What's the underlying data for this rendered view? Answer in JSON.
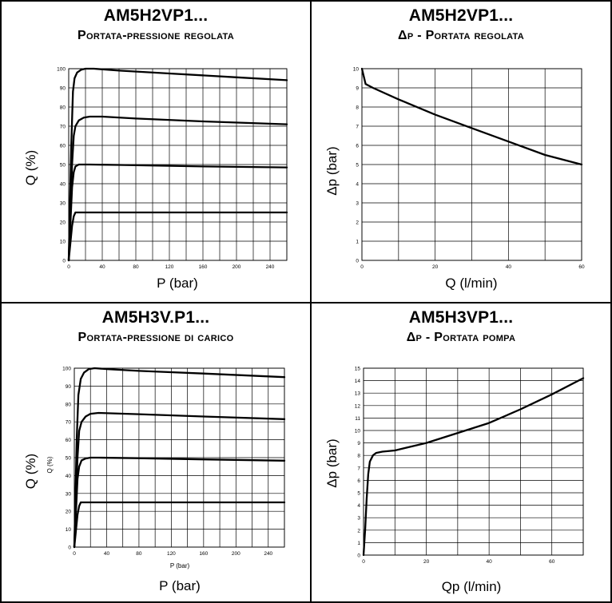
{
  "panels": [
    {
      "id": "p1",
      "title": "AM5H2VP1...",
      "subtitle": "Portata-pressione regolata",
      "chart_data": {
        "type": "line",
        "xlabel": "P (bar)",
        "ylabel": "Q (%)",
        "xlim": [
          0,
          260
        ],
        "ylim": [
          0,
          100
        ],
        "xticks": [
          0,
          40,
          80,
          120,
          160,
          200,
          240
        ],
        "yticks": [
          0,
          10,
          20,
          30,
          40,
          50,
          60,
          70,
          80,
          90,
          100
        ],
        "grid": true,
        "series": [
          {
            "x": [
              0,
              3,
              5,
              7,
              10,
              15,
              20,
              30,
              60,
              120,
              200,
              260
            ],
            "y": [
              0,
              60,
              88,
              95,
              98,
              99.5,
              100,
              100,
              99,
              97.5,
              95.5,
              94
            ]
          },
          {
            "x": [
              0,
              4,
              6,
              8,
              12,
              18,
              25,
              40,
              80,
              160,
              260
            ],
            "y": [
              0,
              50,
              65,
              70,
              73,
              74.5,
              75,
              75,
              74,
              72.5,
              71
            ]
          },
          {
            "x": [
              0,
              4,
              6,
              8,
              12,
              18,
              25,
              60,
              160,
              260
            ],
            "y": [
              0,
              38,
              46,
              49,
              50,
              50,
              50,
              49.8,
              49,
              48.5
            ]
          },
          {
            "x": [
              0,
              4,
              6,
              8,
              10,
              260
            ],
            "y": [
              0,
              18,
              23,
              25,
              25,
              25
            ]
          }
        ]
      }
    },
    {
      "id": "p2",
      "title": "AM5H2VP1...",
      "subtitle": "Δp - Portata regolata",
      "chart_data": {
        "type": "line",
        "xlabel": "Q (l/min)",
        "ylabel": "Δp (bar)",
        "xlim": [
          0,
          60
        ],
        "ylim": [
          0,
          10
        ],
        "xticks": [
          0,
          20,
          40,
          60
        ],
        "yticks": [
          0,
          1,
          2,
          3,
          4,
          5,
          6,
          7,
          8,
          9,
          10
        ],
        "grid": true,
        "series": [
          {
            "x": [
              0,
              1,
              3,
              10,
              20,
              30,
              40,
              50,
              60
            ],
            "y": [
              10,
              9.2,
              9.0,
              8.4,
              7.6,
              6.9,
              6.2,
              5.5,
              5.0
            ]
          }
        ]
      }
    },
    {
      "id": "p3",
      "title": "AM5H3V.P1...",
      "subtitle": "Portata-pressione di carico",
      "chart_data": {
        "type": "line",
        "xlabel": "P (bar)",
        "ylabel": "Q (%)",
        "inner_xlabel": "P (bar)",
        "inner_ylabel": "Q (%)",
        "xlim": [
          0,
          260
        ],
        "ylim": [
          0,
          100
        ],
        "xticks": [
          0,
          40,
          80,
          120,
          160,
          200,
          240
        ],
        "yticks": [
          0,
          10,
          20,
          30,
          40,
          50,
          60,
          70,
          80,
          90,
          100
        ],
        "grid": true,
        "series": [
          {
            "x": [
              0,
              3,
              5,
              8,
              12,
              18,
              25,
              40,
              80,
              160,
              260
            ],
            "y": [
              0,
              60,
              85,
              94,
              97.5,
              99.5,
              100,
              99.5,
              98.5,
              97,
              95
            ]
          },
          {
            "x": [
              0,
              4,
              6,
              9,
              14,
              20,
              30,
              80,
              160,
              260
            ],
            "y": [
              0,
              50,
              65,
              70,
              73,
              74.5,
              75,
              74.3,
              73,
              71.5
            ]
          },
          {
            "x": [
              0,
              4,
              6,
              9,
              14,
              20,
              30,
              80,
              160,
              260
            ],
            "y": [
              0,
              38,
              45,
              48.5,
              49.5,
              50,
              50,
              49.7,
              49,
              48.3
            ]
          },
          {
            "x": [
              0,
              4,
              6,
              8,
              10,
              260
            ],
            "y": [
              0,
              18,
              23,
              25,
              25,
              25
            ]
          }
        ]
      }
    },
    {
      "id": "p4",
      "title": "AM5H3VP1...",
      "subtitle": "Δp - Portata pompa",
      "chart_data": {
        "type": "line",
        "xlabel": "Qp (l/min)",
        "ylabel": "Δp (bar)",
        "xlim": [
          0,
          70
        ],
        "ylim": [
          0,
          15
        ],
        "xticks": [
          0,
          20,
          40,
          60
        ],
        "yticks": [
          0,
          1,
          2,
          3,
          4,
          5,
          6,
          7,
          8,
          9,
          10,
          11,
          12,
          13,
          14,
          15
        ],
        "grid": true,
        "series": [
          {
            "x": [
              0,
              0.5,
              1,
              1.5,
              2,
              3,
              4,
              6,
              10,
              20,
              30,
              40,
              50,
              60,
              70
            ],
            "y": [
              0,
              2,
              4.5,
              6.5,
              7.5,
              8.0,
              8.2,
              8.3,
              8.4,
              9.0,
              9.8,
              10.6,
              11.7,
              12.9,
              14.2
            ]
          }
        ]
      }
    }
  ]
}
